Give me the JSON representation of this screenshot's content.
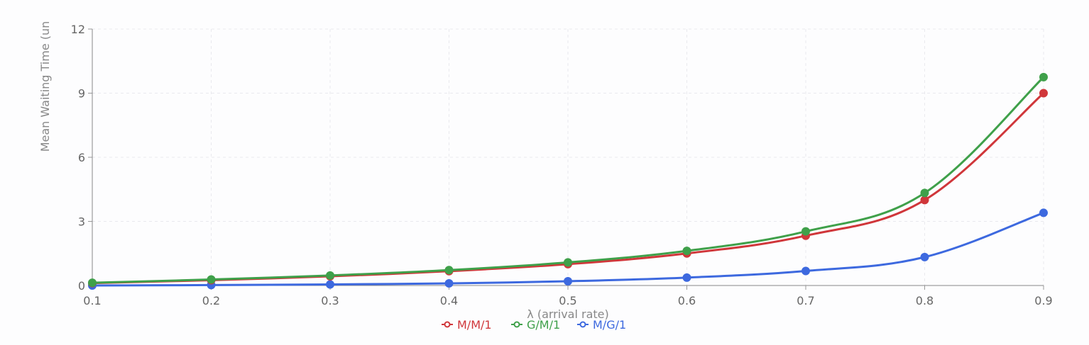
{
  "chart_data": {
    "type": "line",
    "title": "",
    "xlabel": "λ (arrival rate)",
    "ylabel": "Mean Waiting Time (un",
    "x": [
      0.1,
      0.2,
      0.3,
      0.4,
      0.5,
      0.6,
      0.7,
      0.8,
      0.9
    ],
    "x_tick_labels": [
      "0.1",
      "0.2",
      "0.3",
      "0.4",
      "0.5",
      "0.6",
      "0.7",
      "0.8",
      "0.9"
    ],
    "y_tick_labels": [
      "0",
      "3",
      "6",
      "9",
      "12"
    ],
    "y_ticks": [
      0,
      3,
      6,
      9,
      12
    ],
    "xlim": [
      0.1,
      0.9
    ],
    "ylim": [
      0,
      12
    ],
    "grid": true,
    "legend_position": "bottom-center",
    "series": [
      {
        "name": "M/M/1",
        "color": "#d0363a",
        "values": [
          0.11,
          0.25,
          0.43,
          0.67,
          1.0,
          1.5,
          2.33,
          4.0,
          9.0
        ]
      },
      {
        "name": "G/M/1",
        "color": "#3fa04a",
        "values": [
          0.13,
          0.28,
          0.47,
          0.72,
          1.08,
          1.62,
          2.53,
          4.33,
          9.75
        ]
      },
      {
        "name": "M/G/1",
        "color": "#3d69df",
        "values": [
          0.0,
          0.02,
          0.05,
          0.1,
          0.2,
          0.37,
          0.68,
          1.33,
          3.4
        ]
      }
    ]
  }
}
